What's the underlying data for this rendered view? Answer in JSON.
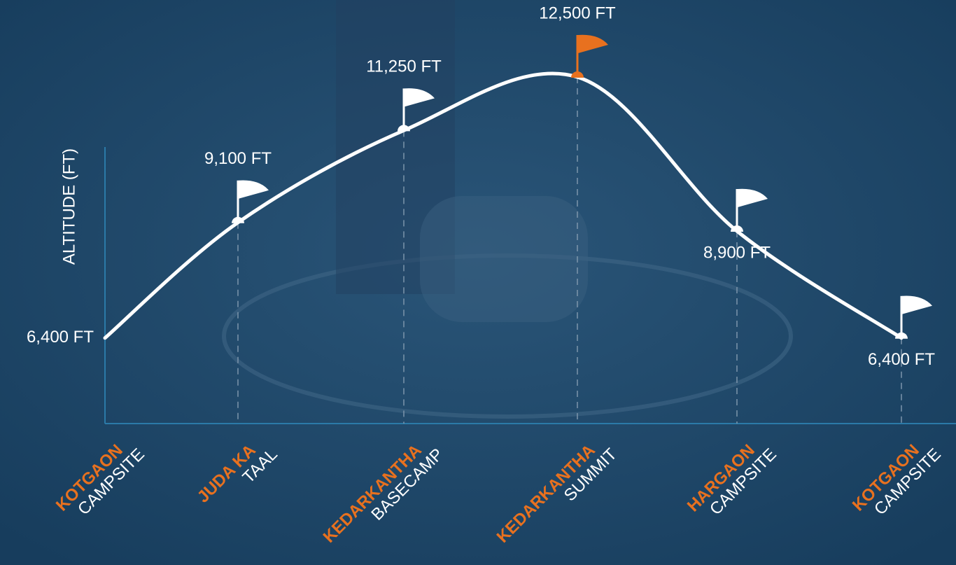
{
  "chart_data": {
    "type": "line",
    "y_label": "ALTITUDE (FT)",
    "categories": [
      {
        "place": "KOTGAON",
        "site": "CAMPSITE"
      },
      {
        "place": "JUDA KA",
        "site": "TAAL"
      },
      {
        "place": "KEDARKANTHA",
        "site": "BASECAMP"
      },
      {
        "place": "KEDARKANTHA",
        "site": "SUMMIT"
      },
      {
        "place": "HARGAON",
        "site": "CAMPSITE"
      },
      {
        "place": "KOTGAON",
        "site": "CAMPSITE"
      }
    ],
    "values": [
      6400,
      9100,
      11250,
      12500,
      8900,
      6400
    ],
    "value_labels": [
      "6,400 FT",
      "9,100 FT",
      "11,250 FT",
      "12,500 FT",
      "8,900 FT",
      "6,400 FT"
    ],
    "ylim": [
      4400,
      14300
    ],
    "line_color": "#ffffff",
    "place_color": "#e8711f",
    "flag_colors": [
      "#ffffff",
      "#ffffff",
      "#ffffff",
      "#e8711f",
      "#ffffff",
      "#ffffff"
    ]
  }
}
